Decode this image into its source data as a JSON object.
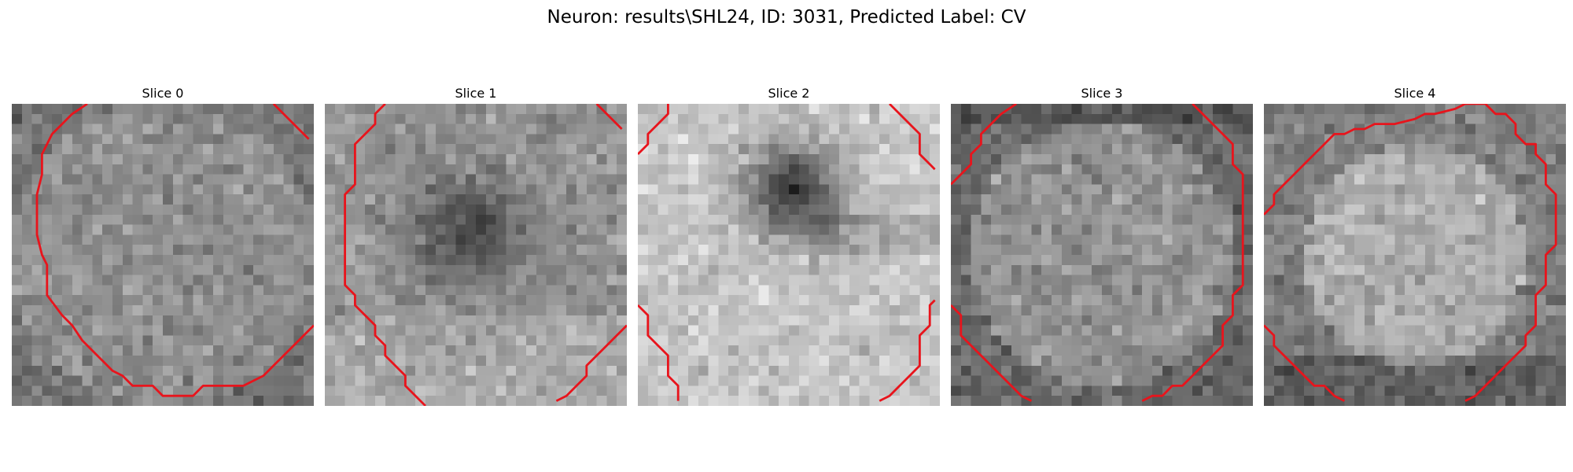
{
  "figure": {
    "title": "Neuron: results\\SHL24, ID: 3031, Predicted Label: CV",
    "contour_color": "#e8141c",
    "colormap": "gray",
    "slices": [
      {
        "title": "Slice 0",
        "seed": 11,
        "scene": "uniform"
      },
      {
        "title": "Slice 1",
        "seed": 23,
        "scene": "dark_center"
      },
      {
        "title": "Slice 2",
        "seed": 37,
        "scene": "bright_ring"
      },
      {
        "title": "Slice 3",
        "seed": 41,
        "scene": "dark_edges"
      },
      {
        "title": "Slice 4",
        "seed": 53,
        "scene": "bright_center"
      }
    ]
  }
}
